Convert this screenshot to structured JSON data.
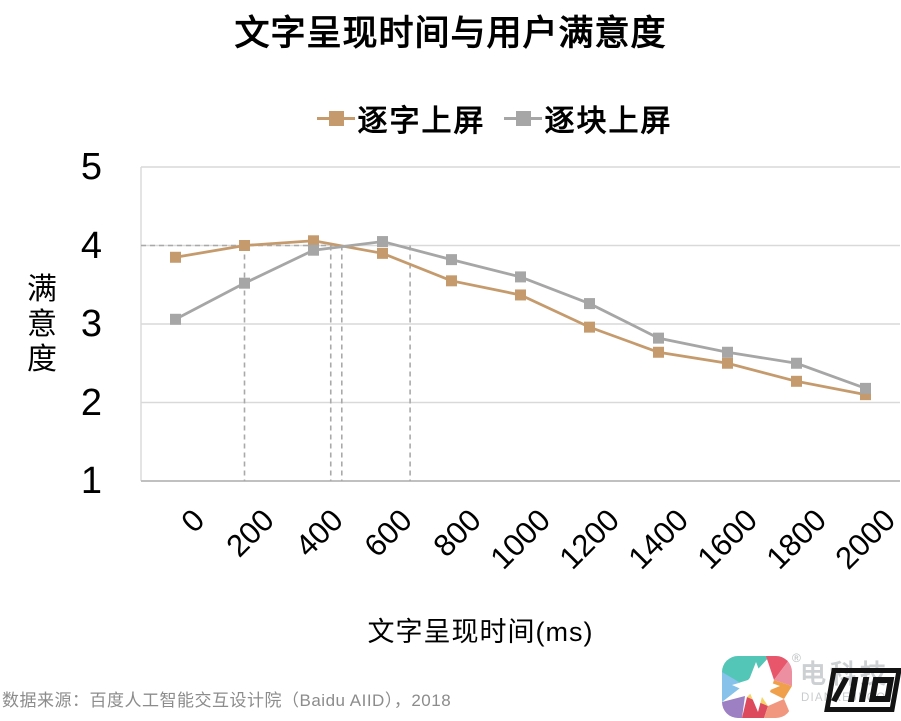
{
  "title": "文字呈现时间与用户满意度",
  "axis": {
    "x_label": "文字呈现时间(ms)",
    "y_label": "满意度"
  },
  "chart_data": {
    "type": "line",
    "x": [
      0,
      200,
      400,
      600,
      800,
      1000,
      1200,
      1400,
      1600,
      1800,
      2000
    ],
    "series": [
      {
        "name": "逐字上屏",
        "color": "#C59B6D",
        "values": [
          3.85,
          4.0,
          4.06,
          3.9,
          3.55,
          3.37,
          2.96,
          2.64,
          2.5,
          2.27,
          2.1
        ]
      },
      {
        "name": "逐块上屏",
        "color": "#A6A6A6",
        "values": [
          3.06,
          3.52,
          3.94,
          4.05,
          3.82,
          3.6,
          3.26,
          2.82,
          2.64,
          2.5,
          2.18
        ]
      }
    ],
    "title": "文字呈现时间与用户满意度",
    "xlabel": "文字呈现时间(ms)",
    "ylabel": "满意度",
    "ylim": [
      1,
      5
    ],
    "y_ticks": [
      5,
      4,
      3,
      2,
      1
    ],
    "grid": "horizontal",
    "legend_position": "top",
    "marker": "square",
    "guides": {
      "horizontal_value": 4,
      "horizontal_extent_ms": 455,
      "vertical_ms": [
        200,
        450,
        482,
        680
      ]
    }
  },
  "colors": {
    "grid": "#D9D9D9",
    "axis_line": "#C0C0C0",
    "guide": "#A9A9A9",
    "text": "#000000",
    "source_text": "#8C8C8C"
  },
  "footer": {
    "source": "数据来源：百度人工智能交互设计院（Baidu AIID），2018"
  },
  "logo": {
    "brand": "电科技",
    "domain": "DIANKEJI.COM",
    "registered_mark": "®",
    "badge_text": "/IID",
    "palette": [
      "#53C6B7",
      "#E7566B",
      "#86C2EA",
      "#9D7FC3",
      "#DD4A5E",
      "#F2977F",
      "#F0A04B",
      "#F6D468",
      "#EC8FA0"
    ]
  }
}
